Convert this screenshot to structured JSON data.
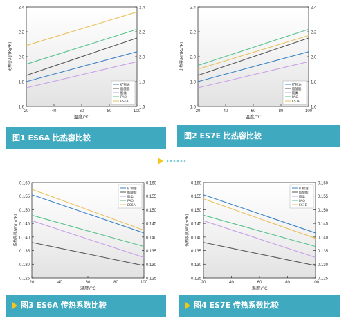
{
  "colors": {
    "banner": "#3fa9c0",
    "accent": "#f5c518",
    "series": [
      "#3b82c4",
      "#555555",
      "#c9a0e8",
      "#55c18c",
      "#e8c15c"
    ]
  },
  "panels": [
    {
      "caption": "图1 ES6A 比热容比较",
      "xlabel": "温度/°C",
      "ylabel": "比热容/kJ/(Kg*K)",
      "xticks": [
        "20",
        "40",
        "60",
        "80",
        "100"
      ],
      "yticks": [
        "1.6",
        "1.8",
        "2.0",
        "2.2",
        "2.4"
      ],
      "yticks_right": [
        "1.6",
        "1.8",
        "2.0",
        "2.2",
        "2.4"
      ],
      "legend": [
        "矿物油",
        "酯酸酯",
        "酯类",
        "PAO",
        "ES6A"
      ]
    },
    {
      "caption": "图2 ES7E 比热容比较",
      "xlabel": "温度/°C",
      "ylabel": "比热容/kJ/(Kg*K)",
      "xticks": [
        "20",
        "40",
        "60",
        "80",
        "100"
      ],
      "yticks": [
        "1.6",
        "1.8",
        "2.0",
        "2.2",
        "2.4"
      ],
      "yticks_right": [
        "1.6",
        "1.8",
        "2.0",
        "2.2",
        "2.4"
      ],
      "legend": [
        "矿物油",
        "酯酸酯",
        "酯类",
        "PAO",
        "ES7E"
      ]
    },
    {
      "caption": "图3 ES6A 传热系数比较",
      "xlabel": "温度/°C",
      "ylabel": "传热系数/W/(m*K)",
      "xticks": [
        "20",
        "40",
        "60",
        "80",
        "100"
      ],
      "yticks": [
        "0.125",
        "0.130",
        "0.135",
        "0.140",
        "0.145",
        "0.150",
        "0.155",
        "0.160"
      ],
      "yticks_right": [
        "0.125",
        "0.130",
        "0.135",
        "0.140",
        "0.145",
        "0.150",
        "0.155",
        "0.160"
      ],
      "legend": [
        "矿物油",
        "酯酸酯",
        "酯类",
        "PAO",
        "ES6A"
      ]
    },
    {
      "caption": "图4 ES7E 传热系数比较",
      "xlabel": "温度/°C",
      "ylabel": "传热系数/W/(m*K)",
      "xticks": [
        "20",
        "40",
        "60",
        "80",
        "100"
      ],
      "yticks": [
        "0.125",
        "0.130",
        "0.135",
        "0.140",
        "0.145",
        "0.150",
        "0.155",
        "0.160"
      ],
      "yticks_right": [
        "0.125",
        "0.130",
        "0.135",
        "0.140",
        "0.145",
        "0.150",
        "0.155",
        "0.160"
      ],
      "legend": [
        "矿物油",
        "酯酸酯",
        "酯类",
        "PAO",
        "ES7E"
      ]
    }
  ],
  "chart_data": [
    {
      "type": "line",
      "title": "图1 ES6A 比热容比较",
      "xlabel": "温度/°C",
      "ylabel": "比热容/kJ/(Kg*K)",
      "xlim": [
        20,
        100
      ],
      "ylim": [
        1.6,
        2.4
      ],
      "x": [
        20,
        100
      ],
      "legend_position": "bottom-right",
      "series": [
        {
          "name": "矿物油",
          "values": [
            1.8,
            2.04
          ]
        },
        {
          "name": "酯酸酯",
          "values": [
            1.85,
            2.15
          ]
        },
        {
          "name": "酯类",
          "values": [
            1.75,
            1.96
          ]
        },
        {
          "name": "PAO",
          "values": [
            1.94,
            2.22
          ]
        },
        {
          "name": "ES6A",
          "values": [
            2.09,
            2.36
          ]
        }
      ]
    },
    {
      "type": "line",
      "title": "图2 ES7E 比热容比较",
      "xlabel": "温度/°C",
      "ylabel": "比热容/kJ/(Kg*K)",
      "xlim": [
        20,
        100
      ],
      "ylim": [
        1.6,
        2.4
      ],
      "x": [
        20,
        100
      ],
      "legend_position": "bottom-right",
      "series": [
        {
          "name": "矿物油",
          "values": [
            1.8,
            2.04
          ]
        },
        {
          "name": "酯酸酯",
          "values": [
            1.85,
            2.15
          ]
        },
        {
          "name": "酯类",
          "values": [
            1.75,
            1.96
          ]
        },
        {
          "name": "PAO",
          "values": [
            1.93,
            2.22
          ]
        },
        {
          "name": "ES7E",
          "values": [
            1.9,
            2.17
          ]
        }
      ]
    },
    {
      "type": "line",
      "title": "图3 ES6A 传热系数比较",
      "xlabel": "温度/°C",
      "ylabel": "传热系数/W/(m*K)",
      "xlim": [
        20,
        100
      ],
      "ylim": [
        0.125,
        0.16
      ],
      "x": [
        20,
        100
      ],
      "legend_position": "top-right",
      "series": [
        {
          "name": "矿物油",
          "values": [
            0.1555,
            0.1415
          ]
        },
        {
          "name": "酯酸酯",
          "values": [
            0.138,
            0.1295
          ]
        },
        {
          "name": "酯类",
          "values": [
            0.146,
            0.1325
          ]
        },
        {
          "name": "PAO",
          "values": [
            0.148,
            0.1365
          ]
        },
        {
          "name": "ES6A",
          "values": [
            0.1575,
            0.1425
          ]
        }
      ]
    },
    {
      "type": "line",
      "title": "图4 ES7E 传热系数比较",
      "xlabel": "温度/°C",
      "ylabel": "传热系数/W/(m*K)",
      "xlim": [
        20,
        100
      ],
      "ylim": [
        0.125,
        0.16
      ],
      "x": [
        20,
        100
      ],
      "legend_position": "top-right",
      "series": [
        {
          "name": "矿物油",
          "values": [
            0.1555,
            0.1415
          ]
        },
        {
          "name": "酯酸酯",
          "values": [
            0.138,
            0.1295
          ]
        },
        {
          "name": "酯类",
          "values": [
            0.146,
            0.1325
          ]
        },
        {
          "name": "PAO",
          "values": [
            0.148,
            0.1365
          ]
        },
        {
          "name": "ES7E",
          "values": [
            0.154,
            0.1395
          ]
        }
      ]
    }
  ]
}
